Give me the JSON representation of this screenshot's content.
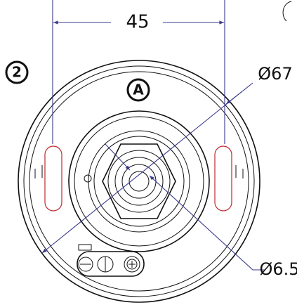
{
  "callouts": [
    {
      "label": "2"
    },
    {
      "label": "A"
    }
  ],
  "dimensions": [
    {
      "label": "45"
    },
    {
      "label": "Ø67"
    },
    {
      "label": "Ø6.5"
    }
  ]
}
